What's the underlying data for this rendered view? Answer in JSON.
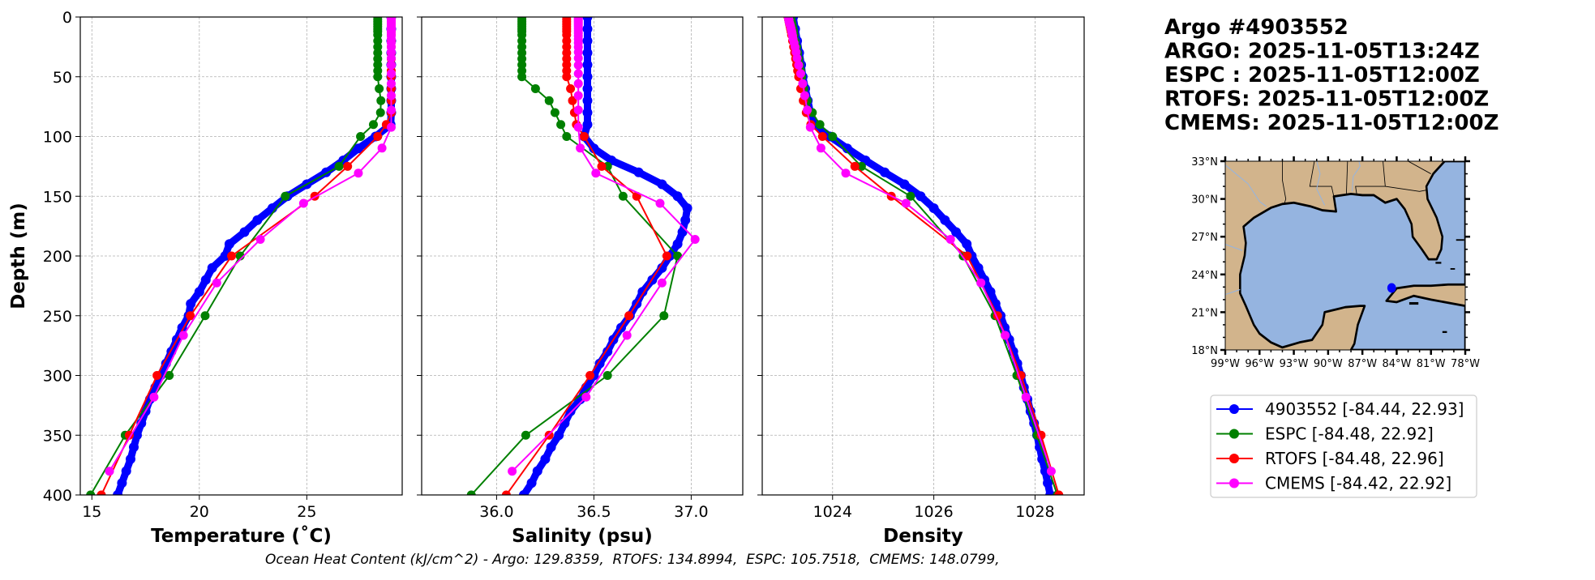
{
  "title_lines": [
    "Argo #4903552",
    "ARGO: 2025-11-05T13:24Z",
    "ESPC : 2025-11-05T12:00Z",
    "RTOFS: 2025-11-05T12:00Z",
    "CMEMS: 2025-11-05T12:00Z"
  ],
  "footer": "Ocean Heat Content (kJ/cm^2) - Argo: 129.8359,  RTOFS: 134.8994,  ESPC: 105.7518,  CMEMS: 148.0799,",
  "ylabel": "Depth (m)",
  "yticks": [
    0,
    50,
    100,
    150,
    200,
    250,
    300,
    350,
    400
  ],
  "ylim": [
    400,
    0
  ],
  "series_meta": [
    {
      "key": "argo",
      "name": "4903552 [-84.44, 22.93]",
      "color": "#0000ff"
    },
    {
      "key": "espc",
      "name": "ESPC [-84.48, 22.92]",
      "color": "#008000"
    },
    {
      "key": "rtofs",
      "name": "RTOFS [-84.48, 22.96]",
      "color": "#ff0000"
    },
    {
      "key": "cmems",
      "name": "CMEMS [-84.42, 22.92]",
      "color": "#ff00ff"
    }
  ],
  "depths": {
    "argo": [
      0,
      10,
      20,
      30,
      40,
      50,
      60,
      70,
      80,
      90,
      100,
      110,
      120,
      130,
      140,
      150,
      160,
      170,
      180,
      190,
      200,
      210,
      220,
      230,
      240,
      250,
      260,
      270,
      280,
      290,
      300,
      310,
      320,
      330,
      340,
      350,
      360,
      370,
      380,
      390,
      400
    ],
    "espc": [
      0,
      2,
      4,
      6,
      8,
      10,
      12,
      15,
      20,
      25,
      30,
      35,
      40,
      45,
      50,
      60,
      70,
      80,
      90,
      100,
      125,
      150,
      200,
      250,
      300,
      350,
      400
    ],
    "rtofs": [
      0,
      2,
      4,
      6,
      8,
      10,
      12,
      15,
      20,
      25,
      30,
      35,
      40,
      45,
      50,
      60,
      70,
      80,
      90,
      100,
      125,
      150,
      200,
      250,
      300,
      350,
      400
    ],
    "cmems": [
      0.5,
      1.5,
      2.6,
      3.8,
      5,
      6.4,
      7.9,
      9.6,
      11.4,
      13.5,
      15.8,
      18.5,
      21.6,
      25.2,
      29.4,
      34.4,
      40.3,
      47.4,
      55.8,
      65.8,
      77.9,
      92.3,
      109.7,
      130.7,
      155.9,
      186.1,
      222.5,
      266.4,
      318.1,
      380.2
    ]
  },
  "chart_data": [
    {
      "type": "line",
      "xlabel": "Temperature (˚C)",
      "ylabel": "Depth (m)",
      "xlim": [
        14.46,
        29.44
      ],
      "xticks": [
        15,
        20,
        25
      ],
      "grid": true,
      "series": {
        "argo": [
          28.93,
          28.93,
          28.93,
          28.93,
          28.93,
          28.93,
          28.93,
          28.93,
          28.93,
          28.9,
          28.2,
          27.4,
          26.7,
          25.9,
          25.0,
          24.1,
          23.4,
          22.7,
          22.1,
          21.4,
          21.2,
          20.6,
          20.3,
          20.0,
          19.6,
          19.5,
          19.2,
          18.95,
          18.7,
          18.45,
          18.2,
          17.95,
          17.7,
          17.5,
          17.3,
          17.1,
          16.95,
          16.8,
          16.6,
          16.4,
          16.2
        ],
        "espc": [
          28.3,
          28.3,
          28.3,
          28.3,
          28.3,
          28.3,
          28.3,
          28.3,
          28.3,
          28.3,
          28.3,
          28.3,
          28.3,
          28.3,
          28.3,
          28.37,
          28.45,
          28.43,
          28.1,
          27.5,
          26.5,
          24.0,
          21.9,
          20.27,
          18.6,
          16.55,
          14.94
        ],
        "rtofs": [
          28.93,
          28.93,
          28.93,
          28.93,
          28.93,
          28.93,
          28.93,
          28.93,
          28.93,
          28.93,
          28.93,
          28.93,
          28.93,
          28.93,
          28.93,
          28.93,
          28.93,
          28.93,
          28.7,
          28.3,
          26.9,
          25.37,
          21.5,
          19.58,
          18.03,
          16.74,
          15.44
        ],
        "cmems": [
          28.93,
          28.93,
          28.93,
          28.93,
          28.93,
          28.93,
          28.93,
          28.93,
          28.93,
          28.93,
          28.93,
          28.93,
          28.93,
          28.93,
          28.93,
          28.93,
          28.93,
          28.93,
          28.93,
          28.93,
          28.93,
          28.93,
          28.5,
          27.4,
          24.85,
          22.84,
          20.81,
          19.26,
          17.89,
          15.82
        ]
      }
    },
    {
      "type": "line",
      "xlabel": "Salinity (psu)",
      "ylabel": "",
      "xlim": [
        35.615,
        37.265
      ],
      "xticks": [
        36.0,
        36.5,
        37.0
      ],
      "grid": true,
      "series": {
        "argo": [
          36.467,
          36.467,
          36.467,
          36.467,
          36.467,
          36.467,
          36.467,
          36.467,
          36.467,
          36.467,
          36.45,
          36.5,
          36.59,
          36.73,
          36.85,
          36.93,
          36.98,
          36.97,
          36.955,
          36.93,
          36.89,
          36.85,
          36.8,
          36.75,
          36.72,
          36.685,
          36.64,
          36.6,
          36.57,
          36.53,
          36.5,
          36.46,
          36.43,
          36.38,
          36.35,
          36.32,
          36.28,
          36.25,
          36.21,
          36.18,
          36.14
        ],
        "espc": [
          36.13,
          36.13,
          36.13,
          36.13,
          36.13,
          36.13,
          36.13,
          36.13,
          36.13,
          36.13,
          36.13,
          36.13,
          36.13,
          36.13,
          36.13,
          36.2,
          36.27,
          36.3,
          36.33,
          36.36,
          36.57,
          36.65,
          36.93,
          36.86,
          36.57,
          36.15,
          35.87
        ],
        "rtofs": [
          36.36,
          36.36,
          36.36,
          36.36,
          36.36,
          36.36,
          36.36,
          36.36,
          36.36,
          36.36,
          36.36,
          36.36,
          36.36,
          36.36,
          36.36,
          36.38,
          36.39,
          36.4,
          36.41,
          36.45,
          36.54,
          36.72,
          36.875,
          36.68,
          36.48,
          36.27,
          36.05
        ],
        "cmems": [
          36.42,
          36.42,
          36.42,
          36.42,
          36.42,
          36.42,
          36.42,
          36.42,
          36.42,
          36.42,
          36.42,
          36.42,
          36.42,
          36.42,
          36.42,
          36.42,
          36.42,
          36.42,
          36.42,
          36.42,
          36.42,
          36.42,
          36.43,
          36.51,
          36.84,
          37.02,
          36.85,
          36.67,
          36.46,
          36.08
        ]
      }
    },
    {
      "type": "line",
      "xlabel": "Density",
      "ylabel": "",
      "xlim": [
        1022.61,
        1028.97
      ],
      "xticks": [
        1024,
        1026,
        1028
      ],
      "grid": true,
      "series": {
        "argo": [
          1023.22,
          1023.26,
          1023.3,
          1023.34,
          1023.38,
          1023.41,
          1023.46,
          1023.51,
          1023.56,
          1023.63,
          1023.95,
          1024.29,
          1024.65,
          1025.03,
          1025.42,
          1025.74,
          1026.0,
          1026.22,
          1026.44,
          1026.65,
          1026.75,
          1026.88,
          1027.0,
          1027.12,
          1027.22,
          1027.32,
          1027.4,
          1027.49,
          1027.57,
          1027.65,
          1027.72,
          1027.78,
          1027.85,
          1027.91,
          1027.98,
          1028.04,
          1028.09,
          1028.14,
          1028.2,
          1028.25,
          1028.3
        ],
        "espc": [
          1023.17,
          1023.18,
          1023.19,
          1023.2,
          1023.21,
          1023.22,
          1023.23,
          1023.24,
          1023.26,
          1023.29,
          1023.31,
          1023.33,
          1023.35,
          1023.37,
          1023.39,
          1023.43,
          1023.5,
          1023.6,
          1023.75,
          1024.0,
          1024.57,
          1025.54,
          1026.58,
          1027.21,
          1027.64,
          1028.04,
          1028.44
        ],
        "rtofs": [
          1023.12,
          1023.13,
          1023.14,
          1023.15,
          1023.16,
          1023.17,
          1023.18,
          1023.19,
          1023.21,
          1023.23,
          1023.25,
          1023.27,
          1023.29,
          1023.31,
          1023.33,
          1023.37,
          1023.42,
          1023.48,
          1023.57,
          1023.8,
          1024.44,
          1025.16,
          1026.66,
          1027.26,
          1027.72,
          1028.12,
          1028.47
        ],
        "cmems": [
          1023.13,
          1023.13,
          1023.14,
          1023.14,
          1023.15,
          1023.16,
          1023.17,
          1023.18,
          1023.19,
          1023.2,
          1023.21,
          1023.22,
          1023.24,
          1023.26,
          1023.28,
          1023.3,
          1023.33,
          1023.37,
          1023.41,
          1023.45,
          1023.5,
          1023.56,
          1023.77,
          1024.26,
          1025.45,
          1026.33,
          1026.93,
          1027.41,
          1027.82,
          1028.32
        ]
      }
    }
  ],
  "map": {
    "lon_range": [
      -99,
      -78
    ],
    "lat_range": [
      18,
      33
    ],
    "lat_labels": [
      "33°N",
      "30°N",
      "27°N",
      "24°N",
      "21°N",
      "18°N"
    ],
    "lat_values": [
      33,
      30,
      27,
      24,
      21,
      18
    ],
    "lon_labels": [
      "99°W",
      "96°W",
      "93°W",
      "90°W",
      "87°W",
      "84°W",
      "81°W",
      "78°W"
    ],
    "lon_values": [
      -99,
      -96,
      -93,
      -90,
      -87,
      -84,
      -81,
      -78
    ],
    "float_position": [
      -84.44,
      22.93
    ],
    "land_color": "#d2b48c",
    "sea_color": "#95b4e0",
    "marker_color": "#0000ff"
  }
}
